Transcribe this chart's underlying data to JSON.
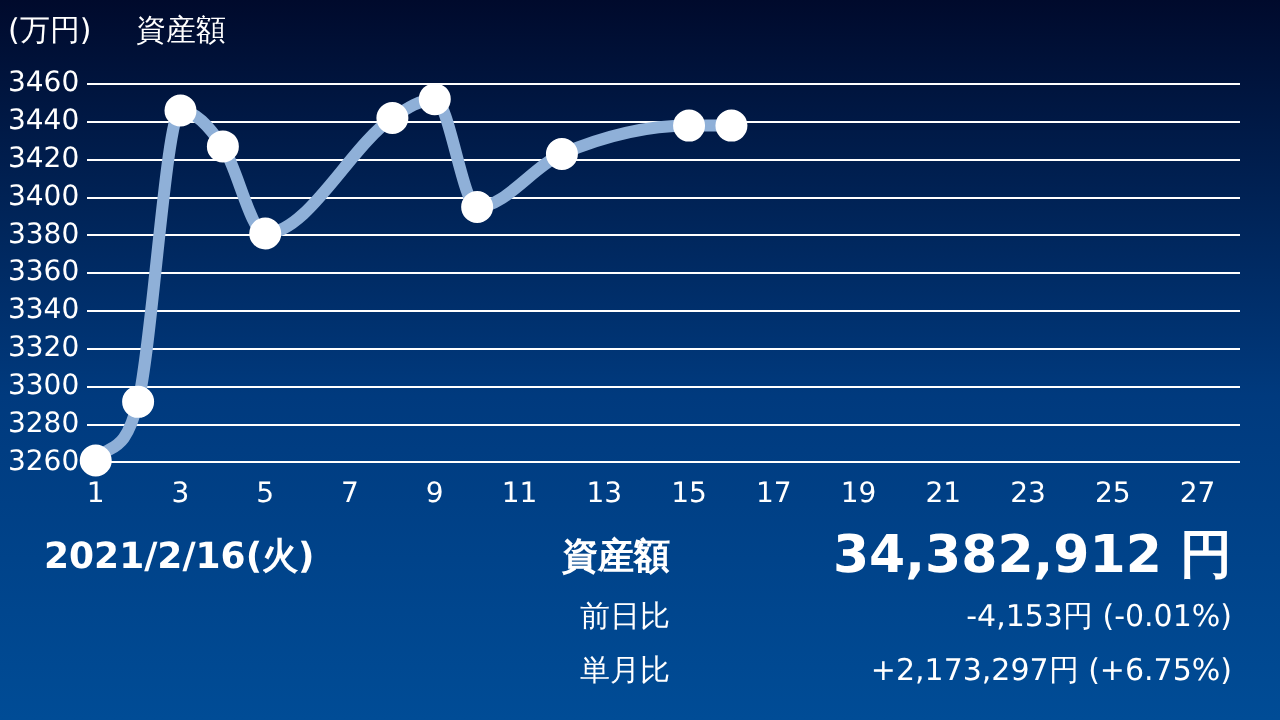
{
  "chart_data": {
    "type": "line",
    "title": "資産額",
    "ylabel": "(万円)",
    "x": [
      1,
      2,
      3,
      4,
      5,
      8,
      9,
      10,
      12,
      15,
      16
    ],
    "series": [
      {
        "color": "#8fb0d8",
        "values": [
          3261,
          3292,
          3446,
          3427,
          3381,
          3442,
          3452,
          3395,
          3423,
          3438,
          3438
        ]
      }
    ],
    "xlim": [
      0.8,
      28
    ],
    "xticks": [
      1,
      3,
      5,
      7,
      9,
      11,
      13,
      15,
      17,
      19,
      21,
      23,
      25,
      27
    ],
    "ylim": [
      3260,
      3460
    ],
    "yticks": [
      3260,
      3280,
      3300,
      3320,
      3340,
      3360,
      3380,
      3400,
      3420,
      3440,
      3460
    ],
    "grid": "y",
    "marker": "circle",
    "line_style": "solid",
    "legend": false,
    "annotations": [
      "2021/2/16(火)",
      "資産額",
      "34,382,912 円",
      "前日比",
      "-4,153円 (-0.01%)",
      "単月比",
      "+2,173,297円 (+6.75%)"
    ]
  }
}
